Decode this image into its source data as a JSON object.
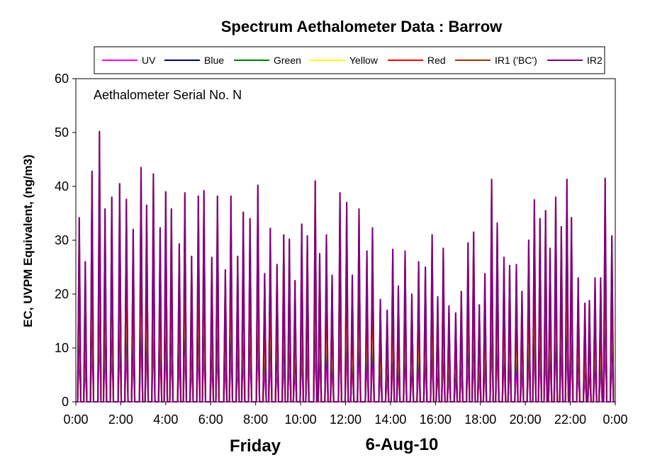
{
  "chart_data": {
    "type": "line",
    "title": "Spectrum Aethalometer Data  :  Barrow",
    "annotation": "Aethalometer  Serial No. N",
    "ylabel": "EC, UVPM Equivalent, (ng/m3)",
    "xlabel_day": "Friday",
    "xlabel_date": "6-Aug-10",
    "ylim": [
      0,
      60
    ],
    "yticks": [
      "0",
      "10",
      "20",
      "30",
      "40",
      "50",
      "60"
    ],
    "xlim_hours": [
      0,
      24
    ],
    "xticks": [
      "0:00",
      "2:00",
      "4:00",
      "6:00",
      "8:00",
      "10:00",
      "12:00",
      "14:00",
      "16:00",
      "18:00",
      "20:00",
      "22:00",
      "0:00"
    ],
    "legend_position": "top",
    "grid": false,
    "series": [
      {
        "name": "UV",
        "color": "#ff00ff",
        "scale": 0.28
      },
      {
        "name": "Blue",
        "color": "#000080",
        "scale": 0.45
      },
      {
        "name": "Green",
        "color": "#008000",
        "scale": 0.55
      },
      {
        "name": "Yellow",
        "color": "#ffff00",
        "scale": 0.62
      },
      {
        "name": "Red",
        "color": "#ff0000",
        "scale": 0.7
      },
      {
        "name": "IR1 ('BC')",
        "color": "#993300",
        "scale": 1.0
      },
      {
        "name": "IR2",
        "color": "#800080",
        "scale": 1.0
      }
    ],
    "peaks": {
      "x": [
        0.15,
        0.42,
        0.72,
        1.05,
        1.3,
        1.6,
        1.95,
        2.25,
        2.55,
        2.9,
        3.15,
        3.45,
        3.75,
        4.0,
        4.25,
        4.6,
        4.85,
        5.15,
        5.45,
        5.7,
        6.05,
        6.3,
        6.65,
        6.9,
        7.2,
        7.45,
        7.75,
        8.1,
        8.4,
        8.65,
        8.95,
        9.25,
        9.5,
        9.75,
        10.05,
        10.3,
        10.65,
        10.85,
        11.15,
        11.4,
        11.75,
        12.05,
        12.3,
        12.6,
        12.95,
        13.2,
        13.55,
        13.85,
        14.1,
        14.35,
        14.65,
        14.95,
        15.25,
        15.55,
        15.85,
        16.1,
        16.35,
        16.6,
        16.9,
        17.15,
        17.45,
        17.7,
        17.95,
        18.2,
        18.5,
        18.75,
        19.05,
        19.3,
        19.6,
        19.85,
        20.15,
        20.4,
        20.65,
        20.9,
        21.1,
        21.35,
        21.6,
        21.85,
        22.05,
        22.35,
        22.65,
        22.85,
        23.1,
        23.35,
        23.55,
        23.85
      ],
      "y": [
        34.2,
        26.0,
        42.8,
        50.2,
        35.8,
        38.0,
        40.5,
        37.6,
        32.0,
        43.5,
        36.5,
        42.3,
        32.3,
        39.0,
        35.8,
        29.3,
        38.8,
        27.0,
        38.2,
        39.2,
        26.8,
        38.2,
        24.5,
        38.2,
        27.0,
        35.2,
        34.0,
        40.2,
        23.8,
        32.2,
        25.5,
        31.0,
        30.2,
        22.5,
        33.0,
        30.8,
        41.0,
        27.5,
        31.0,
        23.5,
        38.8,
        37.0,
        23.5,
        35.8,
        28.0,
        32.3,
        19.0,
        17.0,
        28.3,
        21.5,
        28.0,
        20.0,
        26.0,
        25.0,
        31.0,
        19.5,
        28.5,
        17.8,
        16.5,
        20.5,
        29.5,
        31.5,
        18.0,
        23.8,
        41.3,
        33.2,
        26.8,
        25.3,
        25.5,
        20.5,
        30.0,
        37.5,
        34.0,
        35.5,
        28.5,
        38.0,
        32.5,
        41.3,
        34.2,
        23.0,
        18.3,
        18.8,
        23.0,
        23.0,
        41.5,
        30.8
      ]
    }
  }
}
